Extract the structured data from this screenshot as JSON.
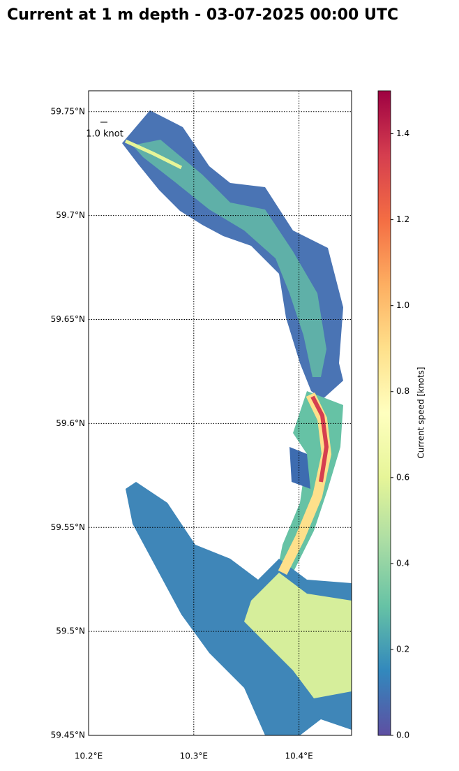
{
  "chart_data": {
    "type": "map",
    "title": "Current at 1 m depth - 03-07-2025 00:00 UTC",
    "xlim": [
      10.2,
      10.45
    ],
    "ylim": [
      59.45,
      59.76
    ],
    "xticks": [
      {
        "value": 10.2,
        "label": "10.2°E"
      },
      {
        "value": 10.3,
        "label": "10.3°E"
      },
      {
        "value": 10.4,
        "label": "10.4°E"
      }
    ],
    "yticks": [
      {
        "value": 59.45,
        "label": "59.45°N"
      },
      {
        "value": 59.5,
        "label": "59.5°N"
      },
      {
        "value": 59.55,
        "label": "59.55°N"
      },
      {
        "value": 59.6,
        "label": "59.6°N"
      },
      {
        "value": 59.65,
        "label": "59.65°N"
      },
      {
        "value": 59.7,
        "label": "59.7°N"
      },
      {
        "value": 59.75,
        "label": "59.75°N"
      }
    ],
    "grid": true,
    "quiver_key": "1.0 knot",
    "colorbar": {
      "label": "Current speed [knots]",
      "lim": [
        0,
        1.5
      ],
      "ticks": [
        {
          "value": 0,
          "label": "0.0"
        },
        0.2,
        0.4,
        0.6,
        0.8,
        {
          "value": 1,
          "label": "1.0"
        },
        1.2,
        1.4
      ],
      "colormap": [
        "#5e4fa2",
        "#3288bd",
        "#66c2a5",
        "#abdda4",
        "#e6f598",
        "#ffffbf",
        "#fee08b",
        "#fdae61",
        "#f46d43",
        "#d53e4f",
        "#9e0142"
      ]
    }
  }
}
